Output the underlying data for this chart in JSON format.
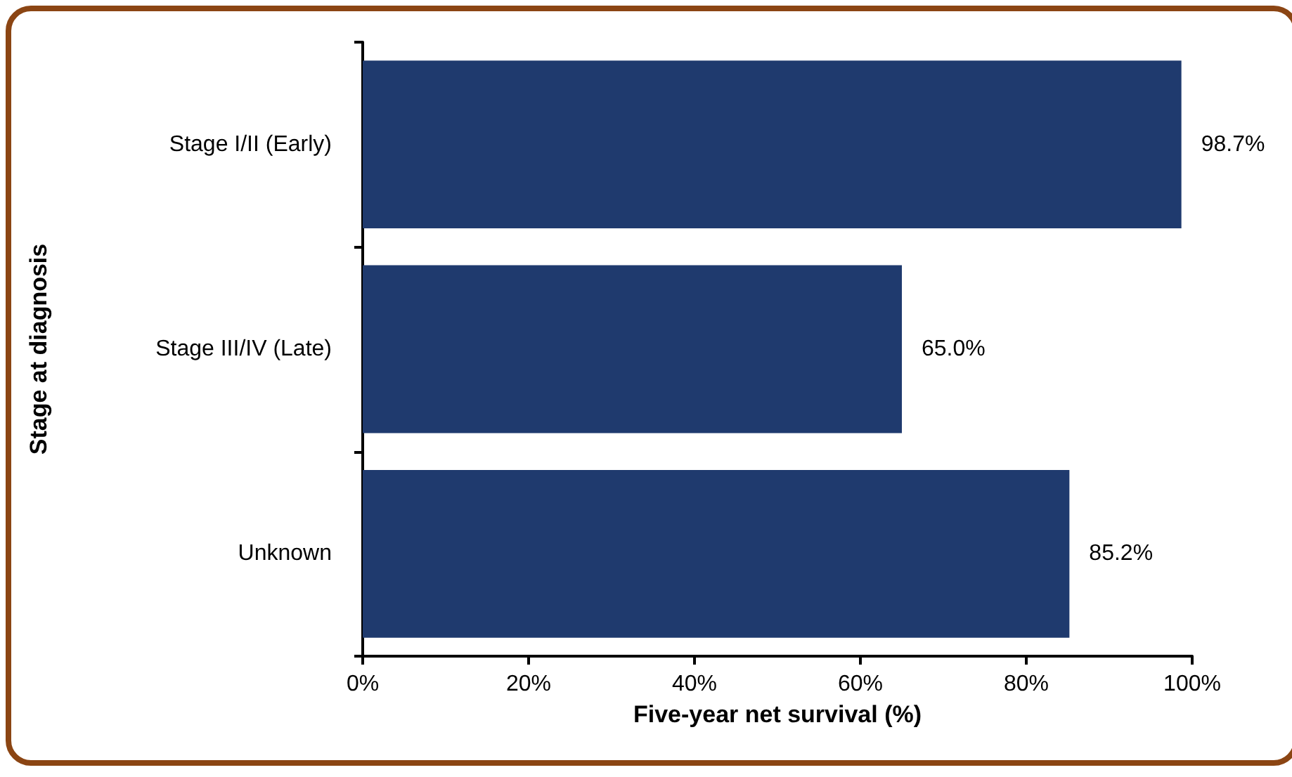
{
  "chart_data": {
    "type": "bar",
    "orientation": "horizontal",
    "xlabel": "Five-year net survival (%)",
    "ylabel": "Stage at diagnosis",
    "categories": [
      "Stage I/II (Early)",
      "Stage III/IV (Late)",
      "Unknown"
    ],
    "values": [
      98.7,
      65.0,
      85.2
    ],
    "color": "#1f3a6e",
    "value_labels": [
      "98.7%",
      "65.0%",
      "85.2%"
    ],
    "xlim": [
      0,
      100
    ],
    "xticks": [
      {
        "value": 0,
        "label": "0%"
      },
      {
        "value": 20,
        "label": "20%"
      },
      {
        "value": 40,
        "label": "40%"
      },
      {
        "value": 60,
        "label": "60%"
      },
      {
        "value": 80,
        "label": "80%"
      },
      {
        "value": 100,
        "label": "100%"
      }
    ],
    "grid": false
  }
}
